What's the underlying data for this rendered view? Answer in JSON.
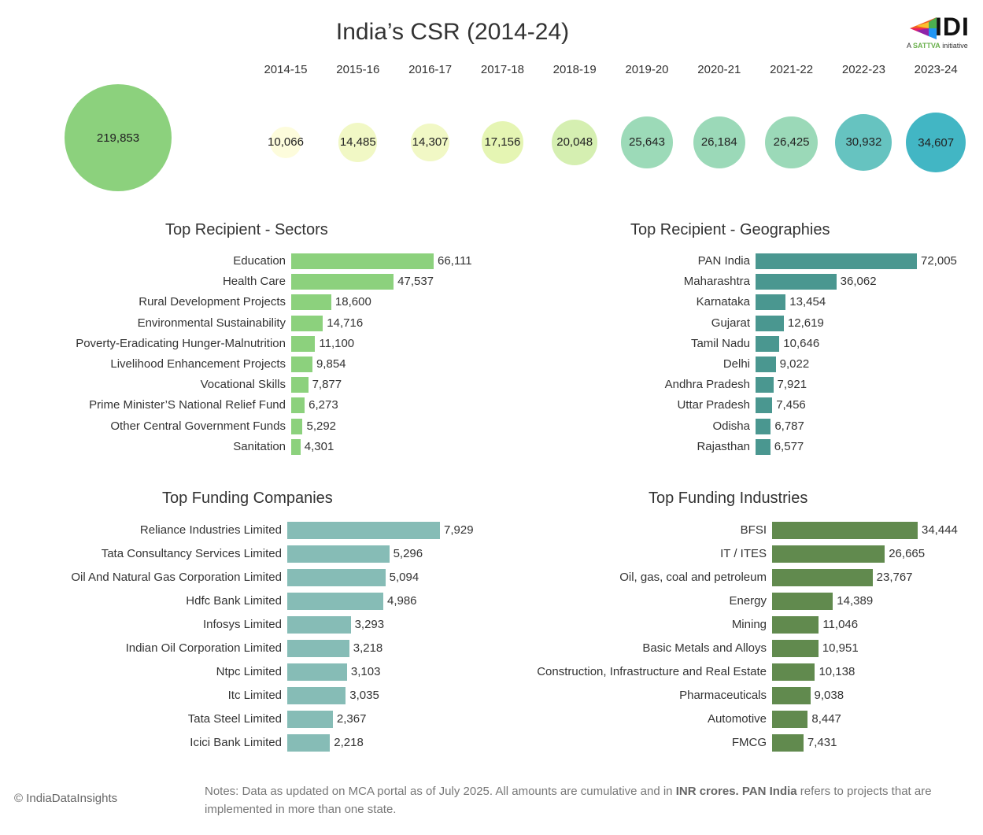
{
  "title": "India’s CSR (2014-24)",
  "logo": {
    "name": "IDI",
    "tagline_prefix": "A",
    "tagline_brand": "SATTVA",
    "tagline_suffix": "initiative"
  },
  "colors": {
    "total": "#8cd17d",
    "sectors": "#8cd17d",
    "geographies": "#4a9790",
    "companies": "#86bcb6",
    "industries": "#618a4e",
    "year_scale": [
      "#fdfcdc",
      "#f1f8c5",
      "#f1f8c5",
      "#e5f5b3",
      "#d5efb1",
      "#9cdab8",
      "#9bd9b8",
      "#9bd9b8",
      "#66c3c0",
      "#42b6c4"
    ]
  },
  "chart_data": [
    {
      "type": "bubble",
      "title": "India’s CSR (2014-24)",
      "total": {
        "label": "219,853",
        "value": 219853
      },
      "categories": [
        "2014-15",
        "2015-16",
        "2016-17",
        "2017-18",
        "2018-19",
        "2019-20",
        "2020-21",
        "2021-22",
        "2022-23",
        "2023-24"
      ],
      "values": [
        10066,
        14485,
        14307,
        17156,
        20048,
        25643,
        26184,
        26425,
        30932,
        34607
      ],
      "value_labels": [
        "10,066",
        "14,485",
        "14,307",
        "17,156",
        "20,048",
        "25,643",
        "26,184",
        "26,425",
        "30,932",
        "34,607"
      ]
    },
    {
      "type": "bar",
      "orientation": "horizontal",
      "title": "Top Recipient - Sectors",
      "categories": [
        "Education",
        "Health Care",
        "Rural Development Projects",
        "Environmental Sustainability",
        "Poverty-Eradicating Hunger-Malnutrition",
        "Livelihood Enhancement Projects",
        "Vocational Skills",
        "Prime Minister’S National Relief Fund",
        "Other Central Government Funds",
        "Sanitation"
      ],
      "values": [
        66111,
        47537,
        18600,
        14716,
        11100,
        9854,
        7877,
        6273,
        5292,
        4301
      ],
      "value_labels": [
        "66,111",
        "47,537",
        "18,600",
        "14,716",
        "11,100",
        "9,854",
        "7,877",
        "6,273",
        "5,292",
        "4,301"
      ]
    },
    {
      "type": "bar",
      "orientation": "horizontal",
      "title": "Top Recipient - Geographies",
      "categories": [
        "PAN India",
        "Maharashtra",
        "Karnataka",
        "Gujarat",
        "Tamil Nadu",
        "Delhi",
        "Andhra Pradesh",
        "Uttar Pradesh",
        "Odisha",
        "Rajasthan"
      ],
      "values": [
        72005,
        36062,
        13454,
        12619,
        10646,
        9022,
        7921,
        7456,
        6787,
        6577
      ],
      "value_labels": [
        "72,005",
        "36,062",
        "13,454",
        "12,619",
        "10,646",
        "9,022",
        "7,921",
        "7,456",
        "6,787",
        "6,577"
      ]
    },
    {
      "type": "bar",
      "orientation": "horizontal",
      "title": "Top Funding Companies",
      "categories": [
        "Reliance Industries Limited",
        "Tata Consultancy Services Limited",
        "Oil And Natural Gas Corporation Limited",
        "Hdfc Bank Limited",
        "Infosys Limited",
        "Indian Oil Corporation Limited",
        "Ntpc Limited",
        "Itc Limited",
        "Tata Steel Limited",
        "Icici Bank Limited"
      ],
      "values": [
        7929,
        5296,
        5094,
        4986,
        3293,
        3218,
        3103,
        3035,
        2367,
        2218
      ],
      "value_labels": [
        "7,929",
        "5,296",
        "5,094",
        "4,986",
        "3,293",
        "3,218",
        "3,103",
        "3,035",
        "2,367",
        "2,218"
      ]
    },
    {
      "type": "bar",
      "orientation": "horizontal",
      "title": "Top Funding Industries",
      "categories": [
        "BFSI",
        "IT / ITES",
        "Oil, gas, coal and petroleum",
        "Energy",
        "Mining",
        "Basic Metals and Alloys",
        "Construction, Infrastructure and Real Estate",
        "Pharmaceuticals",
        "Automotive",
        "FMCG"
      ],
      "values": [
        34444,
        26665,
        23767,
        14389,
        11046,
        10951,
        10138,
        9038,
        8447,
        7431
      ],
      "value_labels": [
        "34,444",
        "26,665",
        "23,767",
        "14,389",
        "11,046",
        "10,951",
        "10,138",
        "9,038",
        "8,447",
        "7,431"
      ]
    }
  ],
  "footer": {
    "copyright": "© IndiaDataInsights",
    "notes_part1": "Notes: Data as updated on MCA portal as of July 2025. All amounts are cumulative and in ",
    "notes_bold1": "INR crores.",
    "notes_bold2": "PAN India",
    "notes_part2": " refers to projects that are implemented in more than one state."
  }
}
